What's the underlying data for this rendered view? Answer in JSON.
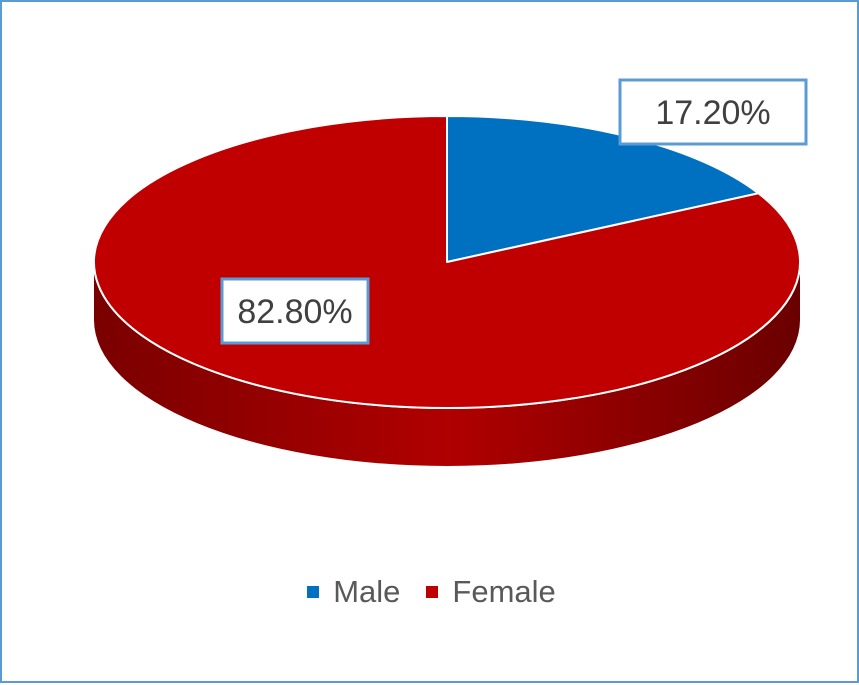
{
  "chart_data": {
    "type": "pie",
    "style": "3d",
    "title": "",
    "slices": [
      {
        "label": "Male",
        "value": 17.2,
        "display": "17.20%",
        "color": "#0070c0"
      },
      {
        "label": "Female",
        "value": 82.8,
        "display": "82.80%",
        "color": "#c00000"
      }
    ],
    "legend_position": "bottom",
    "label_box_border_color": "#5b9bd5"
  }
}
